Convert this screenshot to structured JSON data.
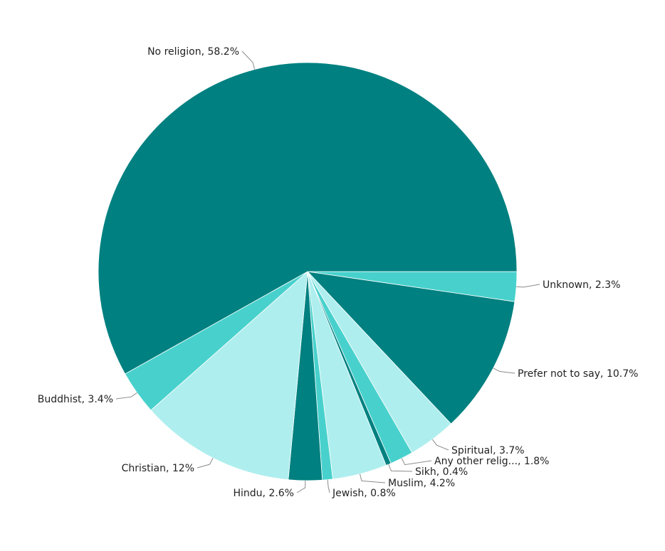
{
  "chart_data": {
    "type": "pie",
    "slices": [
      {
        "label": "Unknown, 2.3%",
        "value": 2.3,
        "color": "#48d1cc"
      },
      {
        "label": "Prefer not to say, 10.7%",
        "value": 10.7,
        "color": "#008080"
      },
      {
        "label": "Spiritual, 3.7%",
        "value": 3.7,
        "color": "#afeeee"
      },
      {
        "label": "Any other relig..., 1.8%",
        "value": 1.8,
        "color": "#48d1cc"
      },
      {
        "label": "Sikh, 0.4%",
        "value": 0.4,
        "color": "#008080"
      },
      {
        "label": "Muslim, 4.2%",
        "value": 4.2,
        "color": "#afeeee"
      },
      {
        "label": "Jewish, 0.8%",
        "value": 0.8,
        "color": "#48d1cc"
      },
      {
        "label": "Hindu, 2.6%",
        "value": 2.6,
        "color": "#008080"
      },
      {
        "label": "Christian, 12%",
        "value": 12,
        "color": "#afeeee"
      },
      {
        "label": "Buddhist, 3.4%",
        "value": 3.4,
        "color": "#48d1cc"
      },
      {
        "label": "No religion, 58.2%",
        "value": 58.2,
        "color": "#008080"
      }
    ]
  }
}
